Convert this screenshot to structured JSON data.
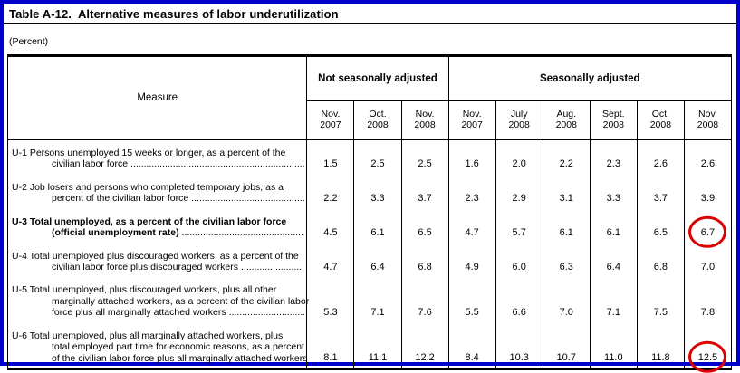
{
  "page": {
    "title": "Table A-12.  Alternative measures of labor underutilization",
    "subtitle": "(Percent)"
  },
  "colors": {
    "page_border": "#0000cc",
    "highlight_circle": "#dd0000",
    "table_lines": "#000000"
  },
  "table": {
    "measure_header": "Measure",
    "leader_dots": "........................................................................................................................",
    "groups": [
      {
        "label": "Not seasonally adjusted",
        "columns": [
          {
            "month": "Nov.",
            "year": "2007"
          },
          {
            "month": "Oct.",
            "year": "2008"
          },
          {
            "month": "Nov.",
            "year": "2008"
          }
        ]
      },
      {
        "label": "Seasonally adjusted",
        "columns": [
          {
            "month": "Nov.",
            "year": "2007"
          },
          {
            "month": "July",
            "year": "2008"
          },
          {
            "month": "Aug.",
            "year": "2008"
          },
          {
            "month": "Sept.",
            "year": "2008"
          },
          {
            "month": "Oct.",
            "year": "2008"
          },
          {
            "month": "Nov.",
            "year": "2008"
          }
        ]
      }
    ],
    "rows": [
      {
        "id": "U-1",
        "bold": false,
        "leader": true,
        "circled": null,
        "lines": [
          "U-1 Persons unemployed 15 weeks or longer, as a percent of the",
          "civilian labor force"
        ],
        "values": [
          "1.5",
          "2.5",
          "2.5",
          "1.6",
          "2.0",
          "2.2",
          "2.3",
          "2.6",
          "2.6"
        ]
      },
      {
        "id": "U-2",
        "bold": false,
        "leader": true,
        "circled": null,
        "lines": [
          "U-2 Job losers and persons who completed temporary jobs, as a",
          "percent of the civilian labor force"
        ],
        "values": [
          "2.2",
          "3.3",
          "3.7",
          "2.3",
          "2.9",
          "3.1",
          "3.3",
          "3.7",
          "3.9"
        ]
      },
      {
        "id": "U-3",
        "bold": true,
        "leader": true,
        "circled": 8,
        "lines": [
          "U-3 Total unemployed, as a percent of the civilian labor force",
          "(official unemployment rate)"
        ],
        "values": [
          "4.5",
          "6.1",
          "6.5",
          "4.7",
          "5.7",
          "6.1",
          "6.1",
          "6.5",
          "6.7"
        ]
      },
      {
        "id": "U-4",
        "bold": false,
        "leader": true,
        "circled": null,
        "lines": [
          "U-4 Total unemployed plus discouraged workers, as a percent of the",
          "civilian labor force plus discouraged workers"
        ],
        "values": [
          "4.7",
          "6.4",
          "6.8",
          "4.9",
          "6.0",
          "6.3",
          "6.4",
          "6.8",
          "7.0"
        ]
      },
      {
        "id": "U-5",
        "bold": false,
        "leader": true,
        "circled": null,
        "lines": [
          "U-5 Total unemployed, plus discouraged workers, plus all other",
          "marginally attached workers, as a percent of the civilian labor",
          "force plus all marginally attached workers"
        ],
        "values": [
          "5.3",
          "7.1",
          "7.6",
          "5.5",
          "6.6",
          "7.0",
          "7.1",
          "7.5",
          "7.8"
        ]
      },
      {
        "id": "U-6",
        "bold": false,
        "leader": false,
        "circled": 8,
        "lines": [
          "U-6 Total unemployed, plus all marginally attached workers, plus",
          "total employed part time for economic reasons, as a percent",
          "of the civilian labor force plus all marginally attached workers"
        ],
        "values": [
          "8.1",
          "11.1",
          "12.2",
          "8.4",
          "10.3",
          "10.7",
          "11.0",
          "11.8",
          "12.5"
        ]
      }
    ]
  }
}
